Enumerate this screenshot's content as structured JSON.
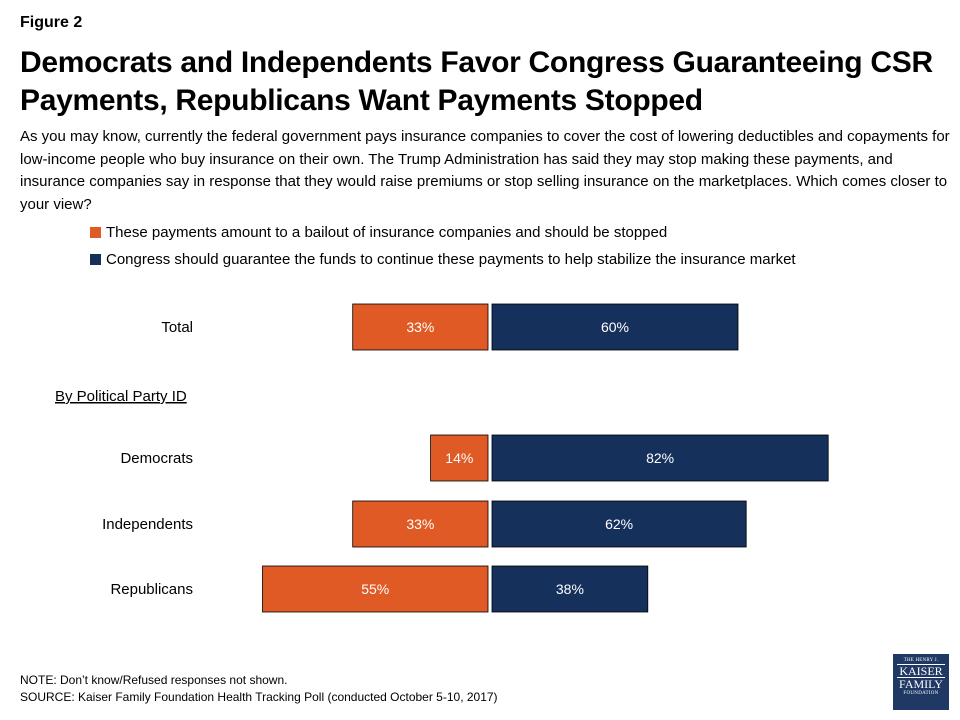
{
  "figure_label": "Figure 2",
  "title": "Democrats and Independents Favor Congress Guaranteeing CSR Payments, Republicans Want Payments Stopped",
  "question": "As you may know, currently the federal government pays insurance companies to cover the cost of lowering deductibles and copayments for low-income people who buy insurance on their own. The Trump Administration has said they may stop making these payments, and insurance companies say in response that they would raise premiums or stop selling insurance on the marketplaces. Which comes closer to your view?",
  "colors": {
    "stopped": "#e05a26",
    "guarantee": "#15305a"
  },
  "chart_data": {
    "type": "bar",
    "orientation": "horizontal-diverging",
    "group_label": "By Political Party ID",
    "categories": [
      "Total",
      "Democrats",
      "Independents",
      "Republicans"
    ],
    "series": [
      {
        "name": "These payments amount to a bailout of insurance companies and should be stopped",
        "values": [
          33,
          14,
          33,
          55
        ],
        "labels": [
          "33%",
          "14%",
          "33%",
          "55%"
        ],
        "color": "#e05a26"
      },
      {
        "name": "Congress should guarantee the funds to continue these payments to help stabilize the insurance market",
        "values": [
          60,
          82,
          62,
          38
        ],
        "labels": [
          "60%",
          "82%",
          "62%",
          "38%"
        ],
        "color": "#15305a"
      }
    ],
    "legend_position": "top"
  },
  "note": "NOTE: Don’t know/Refused responses not shown.",
  "source": "SOURCE: Kaiser Family Foundation Health Tracking Poll (conducted October 5-10, 2017)",
  "logo": {
    "line1": "THE HENRY J.",
    "line2": "KAISER",
    "line3": "FAMILY",
    "line4": "FOUNDATION"
  }
}
